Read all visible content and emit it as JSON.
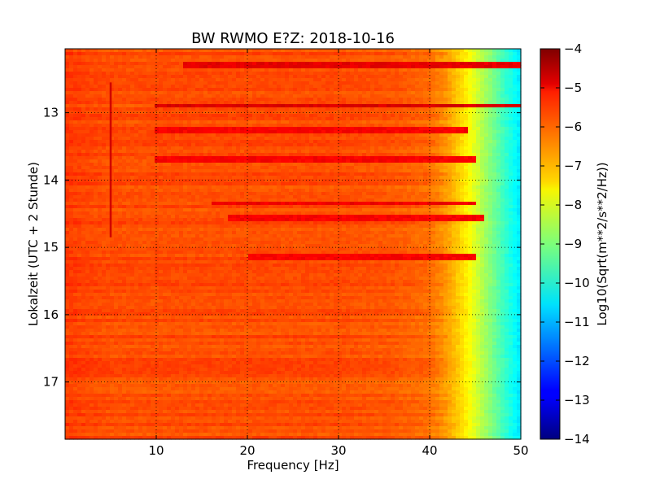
{
  "chart_data": {
    "type": "heatmap",
    "title": "BW RWMO E?Z: 2018-10-16",
    "xlabel": "Frequency [Hz]",
    "ylabel": "Lokalzeit (UTC + 2 Stunde)",
    "colorbar_label": "Log10(Sqrt(m**2/s**2/Hz))",
    "xlim": [
      0,
      50
    ],
    "ylim": [
      12.05,
      17.85
    ],
    "y_inverted": true,
    "x_ticks": [
      10,
      20,
      30,
      40,
      50
    ],
    "x_tick_labels": [
      "10",
      "20",
      "30",
      "40",
      "50"
    ],
    "y_ticks": [
      13,
      14,
      15,
      16,
      17
    ],
    "y_tick_labels": [
      "13",
      "14",
      "15",
      "16",
      "17"
    ],
    "colorbar_range": [
      -14,
      -4
    ],
    "colorbar_ticks": [
      -4,
      -5,
      -6,
      -7,
      -8,
      -9,
      -10,
      -11,
      -12,
      -13,
      -14
    ],
    "colorbar_tick_labels": [
      "−4",
      "−5",
      "−6",
      "−7",
      "−8",
      "−9",
      "−10",
      "−11",
      "−12",
      "−13",
      "−14"
    ],
    "colormap": "jet",
    "grid": "dotted",
    "frequency_profile": {
      "freq_hz": [
        0,
        2,
        5,
        10,
        20,
        30,
        36,
        40,
        42,
        44,
        46,
        48,
        50
      ],
      "log10_amplitude": [
        -5.8,
        -5.9,
        -6.0,
        -6.0,
        -6.0,
        -6.0,
        -6.1,
        -6.3,
        -6.8,
        -7.6,
        -8.6,
        -9.6,
        -10.5
      ]
    },
    "strong_bands": [
      {
        "time": 12.3,
        "fmin": 13,
        "fmax": 50,
        "value": -5.0
      },
      {
        "time": 12.9,
        "fmin": 10,
        "fmax": 50,
        "value": -4.9
      },
      {
        "time": 13.25,
        "fmin": 10,
        "fmax": 44,
        "value": -5.2
      },
      {
        "time": 13.7,
        "fmin": 10,
        "fmax": 45,
        "value": -5.2
      },
      {
        "time": 14.35,
        "fmin": 16,
        "fmax": 45,
        "value": -5.1
      },
      {
        "time": 14.55,
        "fmin": 18,
        "fmax": 46,
        "value": -5.2
      },
      {
        "time": 15.15,
        "fmin": 20,
        "fmax": 45,
        "value": -5.2
      }
    ],
    "vertical_line": {
      "freq_hz": 5,
      "tmin": 12.55,
      "tmax": 14.85,
      "value": -4.8
    }
  }
}
